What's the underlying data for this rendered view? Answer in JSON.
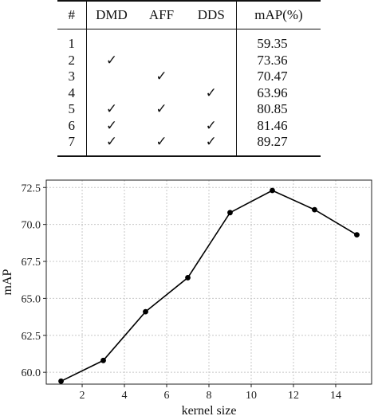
{
  "table": {
    "headers": [
      "#",
      "DMD",
      "AFF",
      "DDS",
      "mAP(%)"
    ],
    "check_glyph": "✓",
    "rows": [
      {
        "id": "1",
        "dmd": "",
        "aff": "",
        "dds": "",
        "map": "59.35"
      },
      {
        "id": "2",
        "dmd": "✓",
        "aff": "",
        "dds": "",
        "map": "73.36"
      },
      {
        "id": "3",
        "dmd": "",
        "aff": "✓",
        "dds": "",
        "map": "70.47"
      },
      {
        "id": "4",
        "dmd": "",
        "aff": "",
        "dds": "✓",
        "map": "63.96"
      },
      {
        "id": "5",
        "dmd": "✓",
        "aff": "✓",
        "dds": "",
        "map": "80.85"
      },
      {
        "id": "6",
        "dmd": "✓",
        "aff": "",
        "dds": "✓",
        "map": "81.46"
      },
      {
        "id": "7",
        "dmd": "✓",
        "aff": "✓",
        "dds": "✓",
        "map": "89.27"
      }
    ]
  },
  "chart_data": {
    "type": "line",
    "title": "",
    "xlabel": "kernel size",
    "ylabel": "mAP",
    "x": [
      1,
      3,
      5,
      7,
      9,
      11,
      13,
      15
    ],
    "series": [
      {
        "values": [
          59.4,
          60.8,
          64.1,
          66.4,
          70.8,
          72.3,
          71.0,
          69.3
        ]
      }
    ],
    "xlim": [
      0.3,
      15.7
    ],
    "ylim": [
      59.2,
      73.0
    ],
    "xticks": [
      2,
      4,
      6,
      8,
      10,
      12,
      14
    ],
    "xtick_labels": [
      "2",
      "4",
      "6",
      "8",
      "10",
      "12",
      "14"
    ],
    "yticks": [
      60.0,
      62.5,
      65.0,
      67.5,
      70.0,
      72.5
    ],
    "ytick_labels": [
      "60.0",
      "62.5",
      "65.0",
      "67.5",
      "70.0",
      "72.5"
    ],
    "grid": true,
    "line_color": "#000000",
    "grid_color": "#c8c8c8"
  }
}
